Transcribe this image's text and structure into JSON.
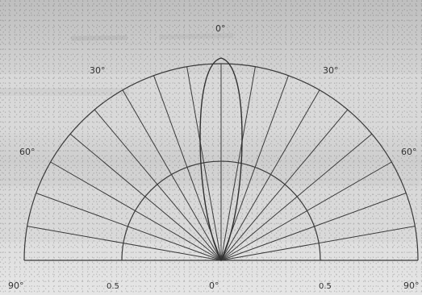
{
  "diagram": {
    "labels": {
      "top_center": "0°",
      "upper_left": "30°",
      "upper_right": "30°",
      "mid_left": "60°",
      "mid_right": "60°",
      "bottom_left": "90°",
      "bottom_left_inner": "0.5",
      "bottom_center": "0°",
      "bottom_right_inner": "0.5",
      "bottom_right": "90°"
    }
  }
}
